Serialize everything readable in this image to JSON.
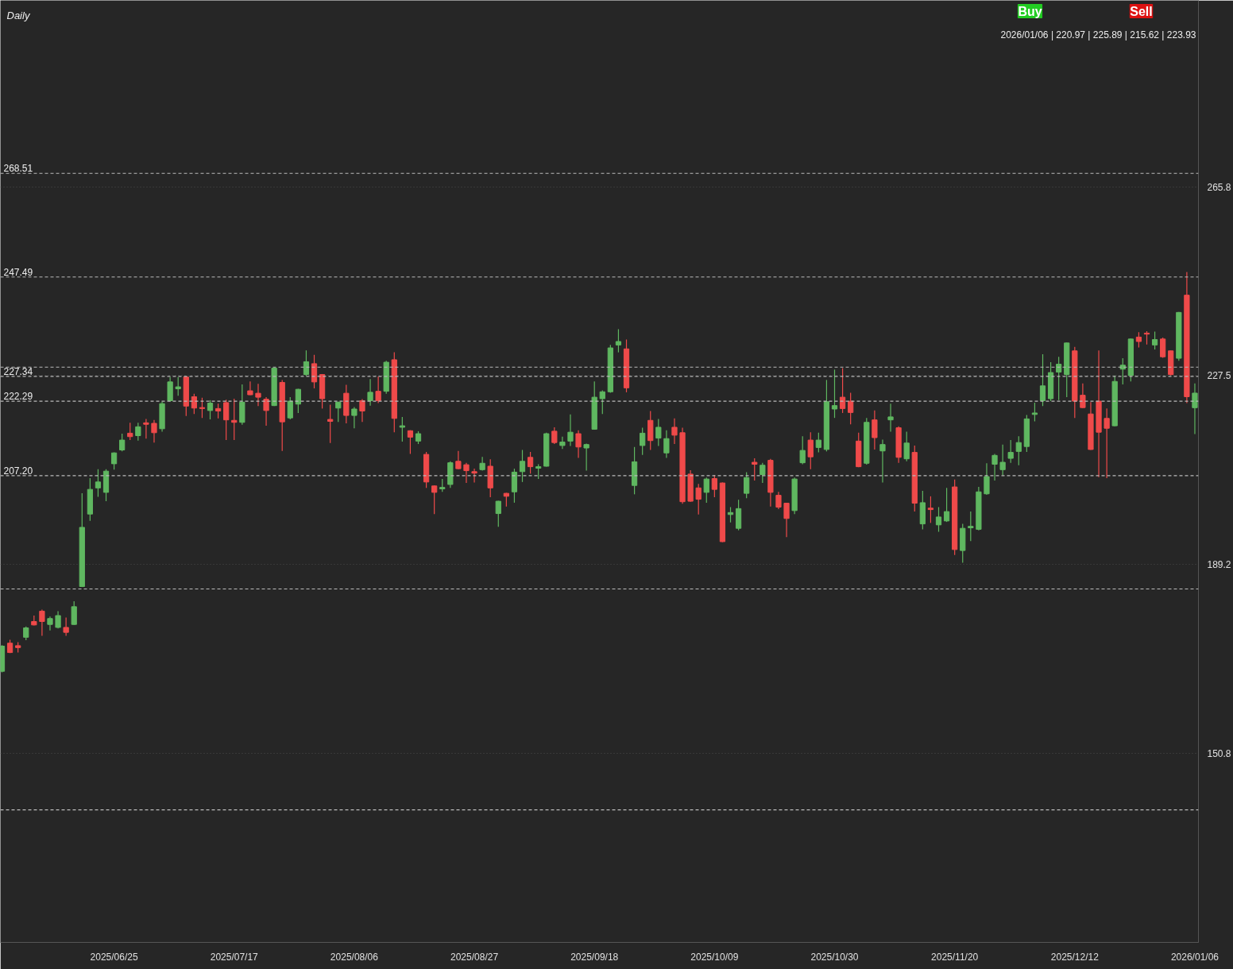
{
  "chart_data": {
    "type": "candlestick",
    "subtitle": "Daily",
    "categories": [
      null,
      null,
      null,
      null,
      null,
      null,
      null,
      null,
      null,
      null,
      null,
      null,
      null,
      null,
      "2025/06/25",
      null,
      null,
      null,
      null,
      null,
      null,
      null,
      null,
      null,
      null,
      null,
      null,
      null,
      null,
      "2025/07/17",
      null,
      null,
      null,
      null,
      null,
      null,
      null,
      null,
      null,
      null,
      null,
      null,
      null,
      null,
      "2025/08/06",
      null,
      null,
      null,
      null,
      null,
      null,
      null,
      null,
      null,
      null,
      null,
      null,
      null,
      null,
      "2025/08/27",
      null,
      null,
      null,
      null,
      null,
      null,
      null,
      null,
      null,
      null,
      null,
      null,
      null,
      null,
      "2025/09/18",
      null,
      null,
      null,
      null,
      null,
      null,
      null,
      null,
      null,
      null,
      null,
      null,
      null,
      null,
      "2025/10/09",
      null,
      null,
      null,
      null,
      null,
      null,
      null,
      null,
      null,
      null,
      null,
      null,
      null,
      null,
      "2025/10/30",
      null,
      null,
      null,
      null,
      null,
      null,
      null,
      null,
      null,
      null,
      null,
      null,
      null,
      null,
      "2025/11/20",
      null,
      null,
      null,
      null,
      null,
      null,
      null,
      null,
      null,
      null,
      null,
      null,
      null,
      null,
      "2025/12/12",
      null,
      null,
      null,
      null,
      null,
      null,
      null,
      null,
      null,
      null,
      null,
      null,
      null,
      null,
      "2026/01/06"
    ],
    "ohlc": [
      [
        167.5,
        172.8,
        167.3,
        172.6
      ],
      [
        173.2,
        173.9,
        171.2,
        171.3
      ],
      [
        172.7,
        173.4,
        171.3,
        172.3
      ],
      [
        174.4,
        176.6,
        173.8,
        176.3
      ],
      [
        177.6,
        178.8,
        176.8,
        176.9
      ],
      [
        179.7,
        180.0,
        174.7,
        177.6
      ],
      [
        177.0,
        178.6,
        175.8,
        178.2
      ],
      [
        176.4,
        179.7,
        176.2,
        178.8
      ],
      [
        176.4,
        178.4,
        174.7,
        175.4
      ],
      [
        177.0,
        181.7,
        176.9,
        180.6
      ],
      [
        184.7,
        203.6,
        184.6,
        196.7
      ],
      [
        199.4,
        206.7,
        198.0,
        204.4
      ],
      [
        204.7,
        208.5,
        202.9,
        205.9
      ],
      [
        203.8,
        208.5,
        202.0,
        208.1
      ],
      [
        209.6,
        211.9,
        208.4,
        211.8
      ],
      [
        212.4,
        215.7,
        212.1,
        214.4
      ],
      [
        215.8,
        217.9,
        214.4,
        215.1
      ],
      [
        215.3,
        217.9,
        214.3,
        217.1
      ],
      [
        217.9,
        218.7,
        214.7,
        217.6
      ],
      [
        217.8,
        218.5,
        213.9,
        215.9
      ],
      [
        216.7,
        222.2,
        216.1,
        221.8
      ],
      [
        222.4,
        227.2,
        222.2,
        226.2
      ],
      [
        224.8,
        227.2,
        223.4,
        225.2
      ],
      [
        227.2,
        227.4,
        219.3,
        221.3
      ],
      [
        223.2,
        223.8,
        219.7,
        220.9
      ],
      [
        221.0,
        223.0,
        218.9,
        220.8
      ],
      [
        220.4,
        222.5,
        218.6,
        221.9
      ],
      [
        220.8,
        221.8,
        218.8,
        220.3
      ],
      [
        222.0,
        222.6,
        214.4,
        218.5
      ],
      [
        218.4,
        222.8,
        214.4,
        218.0
      ],
      [
        218.0,
        225.7,
        217.5,
        222.1
      ],
      [
        224.4,
        226.3,
        223.5,
        223.6
      ],
      [
        223.9,
        225.8,
        221.3,
        223.1
      ],
      [
        222.7,
        223.1,
        217.3,
        220.4
      ],
      [
        221.4,
        229.1,
        221.3,
        229.0
      ],
      [
        226.1,
        226.6,
        212.2,
        218.1
      ],
      [
        218.9,
        223.1,
        218.6,
        222.3
      ],
      [
        221.7,
        224.8,
        219.9,
        224.7
      ],
      [
        227.7,
        232.6,
        227.4,
        230.3
      ],
      [
        229.9,
        231.7,
        224.9,
        226.2
      ],
      [
        227.7,
        227.8,
        220.8,
        222.8
      ],
      [
        218.6,
        221.6,
        213.8,
        218.2
      ],
      [
        220.9,
        222.2,
        218.1,
        222.1
      ],
      [
        223.9,
        225.6,
        217.8,
        219.4
      ],
      [
        219.4,
        221.1,
        216.8,
        220.7
      ],
      [
        222.4,
        222.7,
        218.1,
        220.3
      ],
      [
        222.4,
        226.8,
        221.4,
        224.1
      ],
      [
        224.3,
        227.3,
        221.9,
        222.4
      ],
      [
        224.3,
        230.5,
        223.8,
        230.2
      ],
      [
        230.7,
        232.2,
        216.0,
        218.8
      ],
      [
        217.0,
        219.1,
        214.1,
        217.3
      ],
      [
        216.3,
        216.4,
        211.6,
        215.0
      ],
      [
        214.2,
        216.2,
        213.6,
        215.7
      ],
      [
        211.5,
        212.0,
        204.7,
        205.9
      ],
      [
        205.1,
        205.2,
        199.4,
        203.8
      ],
      [
        204.5,
        206.5,
        203.9,
        204.8
      ],
      [
        205.4,
        210.1,
        204.7,
        209.8
      ],
      [
        210.1,
        212.2,
        208.5,
        208.6
      ],
      [
        209.4,
        209.8,
        205.7,
        208.2
      ],
      [
        208.0,
        208.6,
        205.8,
        207.7
      ],
      [
        208.4,
        211.0,
        208.2,
        209.7
      ],
      [
        209.1,
        210.5,
        202.8,
        204.7
      ],
      [
        199.5,
        202.1,
        196.8,
        202.0
      ],
      [
        203.6,
        203.7,
        200.9,
        203.0
      ],
      [
        203.9,
        208.6,
        201.7,
        207.9
      ],
      [
        208.0,
        212.4,
        205.9,
        210.1
      ],
      [
        210.9,
        212.0,
        207.6,
        209.0
      ],
      [
        208.7,
        209.5,
        206.5,
        209.0
      ],
      [
        209.1,
        215.9,
        209.0,
        215.7
      ],
      [
        216.2,
        217.0,
        213.6,
        213.9
      ],
      [
        213.3,
        215.1,
        212.6,
        214.0
      ],
      [
        214.2,
        219.6,
        213.2,
        216.0
      ],
      [
        215.7,
        216.4,
        210.8,
        213.0
      ],
      [
        212.8,
        213.7,
        208.2,
        213.5
      ],
      [
        216.6,
        226.3,
        216.5,
        223.1
      ],
      [
        222.8,
        224.5,
        219.7,
        224.2
      ],
      [
        224.2,
        233.7,
        224.0,
        233.1
      ],
      [
        233.7,
        236.9,
        232.2,
        234.4
      ],
      [
        232.9,
        234.8,
        224.1,
        225.0
      ],
      [
        205.2,
        213.0,
        203.4,
        210.0
      ],
      [
        213.3,
        216.9,
        211.4,
        215.8
      ],
      [
        218.4,
        220.3,
        212.4,
        214.3
      ],
      [
        214.8,
        218.7,
        213.2,
        217.0
      ],
      [
        211.8,
        216.4,
        210.8,
        214.7
      ],
      [
        217.0,
        218.8,
        213.6,
        215.4
      ],
      [
        215.9,
        216.9,
        201.5,
        201.9
      ],
      [
        207.5,
        208.3,
        201.9,
        202.0
      ],
      [
        204.7,
        205.5,
        199.3,
        202.4
      ],
      [
        203.8,
        206.8,
        201.7,
        206.5
      ],
      [
        206.6,
        207.3,
        202.8,
        204.4
      ],
      [
        205.7,
        205.8,
        193.7,
        193.8
      ],
      [
        199.3,
        200.8,
        197.7,
        199.7
      ],
      [
        196.5,
        202.3,
        196.1,
        200.5
      ],
      [
        203.6,
        207.9,
        202.6,
        206.8
      ],
      [
        209.9,
        210.7,
        206.2,
        209.5
      ],
      [
        207.4,
        209.8,
        205.7,
        209.3
      ],
      [
        210.3,
        210.6,
        200.9,
        203.8
      ],
      [
        203.2,
        203.9,
        200.4,
        200.8
      ],
      [
        201.6,
        201.7,
        194.7,
        198.5
      ],
      [
        200.1,
        206.8,
        199.4,
        206.5
      ],
      [
        209.8,
        215.2,
        209.5,
        212.3
      ],
      [
        214.4,
        216.0,
        208.5,
        211.0
      ],
      [
        212.9,
        215.9,
        211.9,
        214.4
      ],
      [
        212.5,
        226.6,
        212.1,
        222.2
      ],
      [
        220.7,
        228.7,
        218.9,
        221.4
      ],
      [
        223.1,
        229.0,
        219.9,
        220.8
      ],
      [
        222.3,
        224.0,
        217.6,
        220.0
      ],
      [
        214.2,
        215.9,
        208.9,
        209.0
      ],
      [
        209.7,
        218.9,
        209.4,
        218.0
      ],
      [
        218.5,
        220.4,
        212.5,
        214.9
      ],
      [
        212.2,
        214.5,
        205.8,
        213.5
      ],
      [
        218.5,
        221.8,
        216.1,
        219.1
      ],
      [
        216.9,
        217.2,
        209.8,
        210.9
      ],
      [
        210.6,
        216.1,
        210.1,
        213.8
      ],
      [
        211.9,
        213.3,
        199.9,
        201.6
      ],
      [
        197.4,
        204.1,
        196.3,
        201.7
      ],
      [
        200.6,
        203.0,
        197.6,
        200.3
      ],
      [
        197.2,
        200.8,
        195.8,
        198.8
      ],
      [
        198.0,
        204.7,
        197.8,
        199.9
      ],
      [
        204.9,
        206.4,
        191.1,
        192.2
      ],
      [
        192.0,
        197.4,
        189.5,
        196.5
      ],
      [
        196.6,
        199.9,
        193.9,
        196.9
      ],
      [
        196.3,
        204.9,
        196.1,
        203.9
      ],
      [
        203.5,
        209.7,
        203.3,
        207.0
      ],
      [
        209.5,
        211.6,
        206.2,
        211.3
      ],
      [
        208.4,
        213.5,
        207.3,
        209.9
      ],
      [
        210.7,
        214.4,
        209.8,
        211.9
      ],
      [
        212.1,
        215.2,
        209.3,
        213.9
      ],
      [
        213.1,
        219.5,
        212.0,
        218.7
      ],
      [
        219.6,
        222.0,
        218.2,
        219.9
      ],
      [
        222.4,
        231.8,
        221.3,
        225.4
      ],
      [
        222.8,
        230.2,
        222.3,
        228.1
      ],
      [
        228.2,
        231.3,
        222.5,
        229.8
      ],
      [
        227.7,
        234.2,
        223.1,
        234.1
      ],
      [
        232.5,
        233.3,
        218.9,
        222.3
      ],
      [
        223.5,
        225.9,
        220.9,
        221.0
      ],
      [
        219.7,
        222.1,
        212.4,
        212.5
      ],
      [
        222.3,
        232.6,
        206.9,
        216.0
      ],
      [
        218.8,
        220.8,
        206.7,
        216.8
      ],
      [
        217.3,
        227.5,
        217.2,
        226.3
      ],
      [
        228.8,
        231.0,
        225.7,
        229.6
      ],
      [
        227.5,
        235.0,
        226.3,
        234.9
      ],
      [
        235.3,
        236.3,
        233.2,
        234.4
      ],
      [
        236.1,
        236.5,
        233.8,
        235.9
      ],
      [
        233.7,
        236.4,
        232.8,
        234.8
      ],
      [
        234.9,
        235.2,
        231.1,
        231.3
      ],
      [
        232.5,
        232.6,
        227.5,
        227.7
      ],
      [
        231.0,
        240.4,
        230.5,
        240.3
      ],
      [
        243.8,
        248.5,
        221.9,
        223.2
      ],
      [
        220.97,
        225.89,
        215.62,
        223.93
      ]
    ],
    "ylim": [
      112.5,
      303.6
    ],
    "yticks": [
      150.8,
      189.2,
      227.5,
      265.8
    ],
    "grid": "y",
    "ref_lines": [
      {
        "axis": "y",
        "value": 268.51,
        "label": "268.51",
        "line_style": "dashed"
      },
      {
        "axis": "y",
        "value": 247.49,
        "label": "247.49",
        "line_style": "dashed"
      },
      {
        "axis": "y",
        "value": 227.34,
        "label": "227.34",
        "line_style": "dashed"
      },
      {
        "axis": "y",
        "value": 222.29,
        "label": "222.29",
        "line_style": "dashed"
      },
      {
        "axis": "y",
        "value": 207.2,
        "label": "207.20",
        "line_style": "dashed"
      },
      {
        "axis": "y",
        "value": 229.2,
        "label": null,
        "line_style": "dashed"
      },
      {
        "axis": "y",
        "value": 184.2,
        "label": null,
        "line_style": "dashed"
      },
      {
        "axis": "y",
        "value": 139.4,
        "label": null,
        "line_style": "dashed"
      }
    ],
    "annotations": [
      "Buy",
      "Sell",
      "2026/01/06 | 220.97 | 225.89 | 215.62 | 223.93"
    ]
  }
}
